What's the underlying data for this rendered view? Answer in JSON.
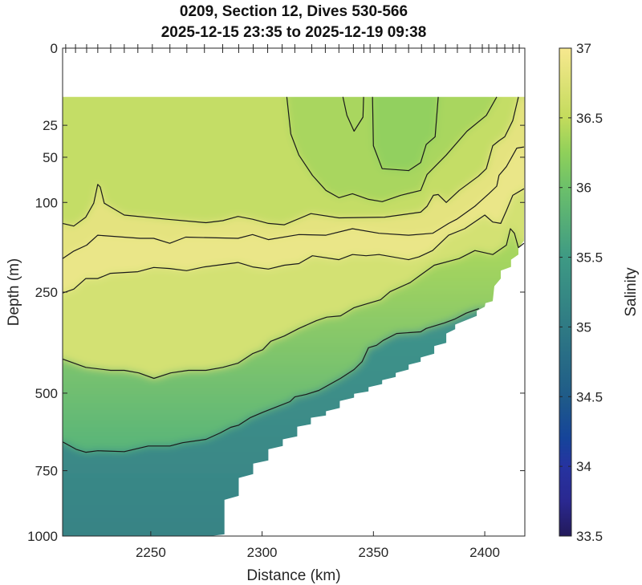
{
  "chart_data": {
    "type": "heatmap",
    "subtype": "filled-contour section",
    "title": [
      "0209, Section 12, Dives 530-566",
      "2025-12-15 23:35 to 2025-12-19 09:38"
    ],
    "xlabel": "Distance (km)",
    "ylabel": "Depth (m)",
    "colorbar_label": "Salinity",
    "xlim": [
      2210.4,
      2418
    ],
    "ylim": [
      0,
      1000
    ],
    "y_scale": "sqrt",
    "y_reversed": true,
    "xticks": [
      2250,
      2300,
      2350,
      2400
    ],
    "xtick_labels": [
      "2250",
      "2300",
      "2350",
      "2400"
    ],
    "yticks": [
      0,
      25,
      50,
      100,
      250,
      500,
      750,
      1000
    ],
    "ytick_labels": [
      "0",
      "25",
      "50",
      "100",
      "250",
      "500",
      "750",
      "1000"
    ],
    "clim": [
      33.5,
      37
    ],
    "colorbar_ticks": [
      37,
      36.5,
      36,
      35.5,
      35,
      34.5,
      34,
      33.5
    ],
    "colorbar_tick_labels": [
      "37",
      "36.5",
      "36",
      "35.5",
      "35",
      "34.5",
      "34",
      "33.5"
    ],
    "colormap": [
      {
        "v": 37,
        "c": "#f7e88f"
      },
      {
        "v": 36.5,
        "c": "#c3db5c"
      },
      {
        "v": 36.25,
        "c": "#8fd05a"
      },
      {
        "v": 36,
        "c": "#6cc06a"
      },
      {
        "v": 35.5,
        "c": "#3e9a84"
      },
      {
        "v": 35,
        "c": "#2f7a84"
      },
      {
        "v": 34.5,
        "c": "#1f5b88"
      },
      {
        "v": 34.2,
        "c": "#15449a"
      },
      {
        "v": 34,
        "c": "#2633a0"
      },
      {
        "v": 33.75,
        "c": "#2a2890"
      },
      {
        "v": 33.5,
        "c": "#231a5a"
      }
    ],
    "dive_ticks_km": [
      2211.8,
      2216.2,
      2221.2,
      2226.2,
      2232.0,
      2238.1,
      2244.2,
      2250.7,
      2258.6,
      2266.2,
      2274.1,
      2282.3,
      2289.5,
      2296.0,
      2302.5,
      2309.0,
      2314.7,
      2322.3,
      2328.4,
      2334.5,
      2341.0,
      2345.7,
      2348.5,
      2354.0,
      2360.0,
      2365.8,
      2371.6,
      2377.3,
      2382.4,
      2387.7,
      2393.5,
      2398.9,
      2401.8,
      2405.4,
      2409.0,
      2412.6,
      2415.5
    ],
    "data_top_depth": 10,
    "data_bottom_boundary": {
      "km": [
        2417.6,
        2415.1,
        2415.1,
        2411.8,
        2411.8,
        2407.2,
        2407.2,
        2404.3,
        2403.6,
        2400.3,
        2400.0,
        2396.4,
        2396.4,
        2386.7,
        2386.7,
        2382.7,
        2382.7,
        2377.3,
        2377.3,
        2371.2,
        2371.2,
        2365.8,
        2365.8,
        2360.0,
        2360.0,
        2353.9,
        2353.9,
        2347.8,
        2347.8,
        2341.3,
        2341.3,
        2334.9,
        2334.9,
        2328.7,
        2328.7,
        2321.9,
        2321.9,
        2315.8,
        2315.8,
        2309.3,
        2309.3,
        2302.8,
        2302.8,
        2296.0,
        2296.0,
        2289.5,
        2289.5,
        2283.1,
        2283.1,
        2276.6
      ],
      "depth": [
        156,
        168,
        179,
        188,
        201,
        208,
        223,
        238,
        269,
        273,
        281,
        290,
        301,
        321,
        332,
        342,
        365,
        373,
        392,
        402,
        413,
        421,
        434,
        443,
        454,
        463,
        474,
        483,
        495,
        502,
        513,
        523,
        544,
        554,
        567,
        574,
        594,
        602,
        633,
        643,
        665,
        676,
        714,
        725,
        762,
        776,
        842,
        857,
        993,
        1000
      ]
    },
    "fields": [
      {
        "region": "base",
        "value": 36.55,
        "color": "#c4dd66"
      },
      {
        "region": "below_L4",
        "value": 36.85,
        "color": "#e4e37f"
      },
      {
        "region": "below_L5",
        "value": 36.95,
        "color": "#eae688"
      },
      {
        "region": "below_L6",
        "value": 36.65,
        "color": "#d3e173"
      },
      {
        "region": "below_L7",
        "value": 36.2,
        "color_top": "#a6d55e",
        "color_bottom": "#55b37a"
      },
      {
        "region": "below_L8",
        "value": 35.5,
        "color_top": "#3f938a",
        "color_bottom": "#378385"
      },
      {
        "region": "inside_L1",
        "value": 36.4,
        "color": "#a9d65f"
      },
      {
        "region": "inside_L2",
        "value": 36.2,
        "color": "#92d05f"
      }
    ],
    "contours": [
      {
        "id": "L1",
        "level": 36.5,
        "km": [
          2311.1,
          2312.9,
          2316.5,
          2322.6,
          2328.7,
          2334.5,
          2340.6,
          2347.8,
          2353.9,
          2362.2,
          2371.2,
          2374.1,
          2382.7,
          2392.0,
          2400.7,
          2405.4
        ],
        "depth": [
          10,
          31,
          48,
          68,
          85,
          94,
          89,
          96,
          99,
          91,
          85,
          67,
          48,
          29,
          19,
          10
        ]
      },
      {
        "id": "L2",
        "level": 36.25,
        "km": [
          2349.6,
          2350.0,
          2353.9,
          2365.8,
          2371.2,
          2373.7,
          2377.7,
          2379.1
        ],
        "depth": [
          10,
          40,
          61,
          63,
          55,
          39,
          33,
          10
        ]
      },
      {
        "id": "L3",
        "level": 36.25,
        "km": [
          2336.3,
          2338.1,
          2341.3,
          2345.3,
          2345.6
        ],
        "depth": [
          10,
          19,
          29,
          20,
          10
        ]
      },
      {
        "id": "L4",
        "level": 36.75,
        "km": [
          2210.4,
          2215.4,
          2220.8,
          2224.4,
          2226.2,
          2227.3,
          2229.1,
          2238.1,
          2257.2,
          2274.8,
          2282.3,
          2289.2,
          2295.7,
          2302.8,
          2310.0,
          2321.9,
          2334.5,
          2355.0,
          2371.2,
          2374.1,
          2376.9,
          2379.1,
          2382.7,
          2388.5,
          2397.1,
          2400.7,
          2403.6,
          2406.4,
          2409.0,
          2412.6,
          2415.1
        ],
        "depth": [
          129,
          133,
          120,
          101,
          78,
          81,
          101,
          117,
          123,
          128,
          125,
          119,
          123,
          129,
          131,
          115,
          121,
          120,
          113,
          105,
          91,
          90,
          100,
          85,
          69,
          61,
          40,
          36,
          33,
          22,
          10
        ]
      },
      {
        "id": "L5",
        "level": 36.9,
        "km": [
          2210.4,
          2215.4,
          2221.2,
          2226.2,
          2245.2,
          2251.3,
          2258.5,
          2265.7,
          2289.2,
          2295.7,
          2302.8,
          2316.5,
          2328.7,
          2340.6,
          2352.5,
          2365.8,
          2376.6,
          2383.8,
          2387.4,
          2395.6,
          2401.8,
          2405.4,
          2406.4,
          2409.7,
          2414.4,
          2417.6
        ],
        "depth": [
          186,
          173,
          163,
          147,
          152,
          152,
          160,
          150,
          152,
          146,
          154,
          146,
          147,
          137,
          144,
          147,
          144,
          129,
          123,
          105,
          89,
          80,
          68,
          59,
          42,
          41
        ]
      },
      {
        "id": "L6",
        "level": 36.75,
        "km": [
          2210.4,
          2215.4,
          2220.8,
          2226.2,
          2231.9,
          2244.2,
          2251.3,
          2258.5,
          2266.1,
          2274.1,
          2289.2,
          2295.7,
          2302.8,
          2310.0,
          2316.5,
          2322.6,
          2334.5,
          2340.6,
          2346.7,
          2352.5,
          2365.8,
          2370.5,
          2376.6,
          2383.8,
          2391.0,
          2400.0,
          2403.6,
          2407.2,
          2409.7,
          2412.6,
          2417.6
        ],
        "depth": [
          252,
          244,
          223,
          223,
          213,
          210,
          202,
          204,
          208,
          201,
          193,
          201,
          205,
          198,
          195,
          181,
          188,
          179,
          181,
          179,
          188,
          183,
          172,
          147,
          137,
          117,
          127,
          129,
          111,
          91,
          83
        ]
      },
      {
        "id": "L7",
        "level": 36.5,
        "km": [
          2210.4,
          2220.8,
          2232.0,
          2238.1,
          2244.6,
          2251.4,
          2259.0,
          2266.9,
          2274.8,
          2282.3,
          2289.2,
          2295.7,
          2300.3,
          2303.9,
          2310.0,
          2316.5,
          2324.4,
          2329.1,
          2335.2,
          2341.3,
          2346.0,
          2353.2,
          2357.5,
          2366.5,
          2371.2,
          2377.3,
          2388.5,
          2391.0,
          2395.6,
          2403.6,
          2409.7,
          2411.5,
          2413.3,
          2415.1,
          2417.6
        ],
        "depth": [
          406,
          428,
          436,
          436,
          443,
          458,
          443,
          436,
          436,
          428,
          417,
          392,
          382,
          361,
          348,
          330,
          312,
          304,
          301,
          283,
          276,
          266,
          249,
          231,
          216,
          198,
          186,
          181,
          172,
          179,
          163,
          137,
          144,
          167,
          160
        ]
      },
      {
        "id": "L8",
        "level": 35.75,
        "km": [
          2210.4,
          2216.5,
          2220.8,
          2226.2,
          2238.1,
          2248.9,
          2258.6,
          2264.3,
          2274.8,
          2281.2,
          2285.9,
          2289.5,
          2294.6,
          2300.3,
          2312.5,
          2314.7,
          2319.7,
          2325.5,
          2335.2,
          2341.3,
          2344.9,
          2347.8,
          2351.4,
          2354.3,
          2360.4,
          2371.2,
          2373.7,
          2382.0,
          2386.7,
          2391.7,
          2397.4
        ],
        "depth": [
          651,
          676,
          686,
          681,
          684,
          665,
          665,
          654,
          643,
          622,
          604,
          597,
          574,
          557,
          525,
          511,
          504,
          492,
          458,
          434,
          413,
          377,
          371,
          359,
          342,
          338,
          330,
          317,
          308,
          295,
          285
        ]
      }
    ]
  }
}
